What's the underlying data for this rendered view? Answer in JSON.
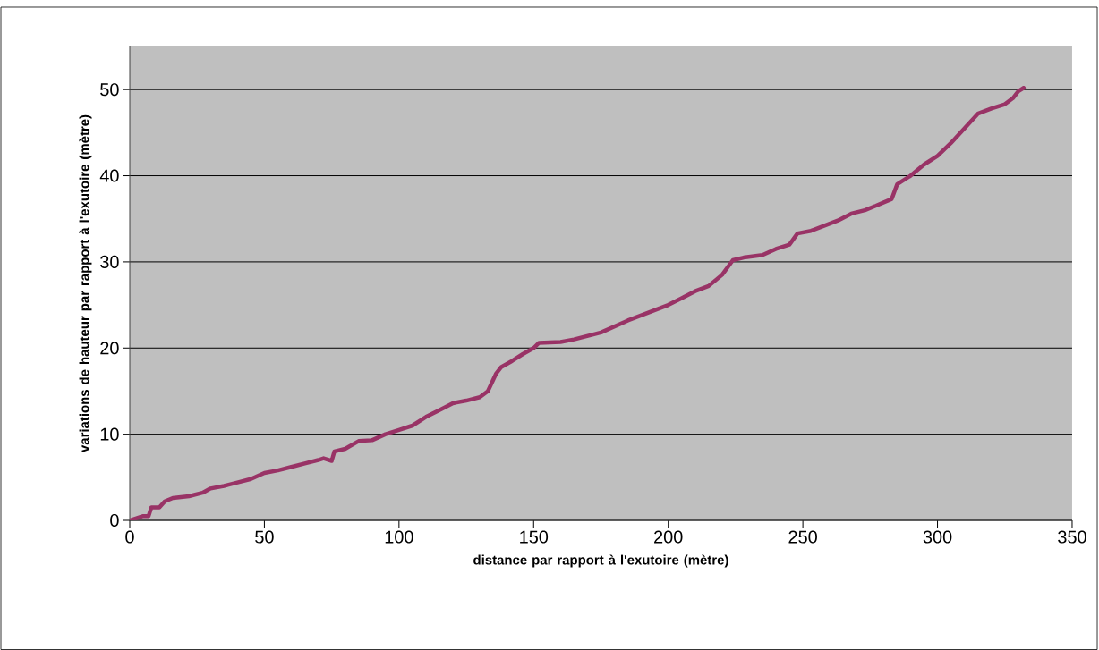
{
  "chart_data": {
    "type": "line",
    "xlabel": "distance par rapport à l'exutoire (mètre)",
    "ylabel": "variations de hauteur par rapport à l'exutoire (mètre)",
    "xlim": [
      0,
      350
    ],
    "xticks": [
      0,
      50,
      100,
      150,
      200,
      250,
      300,
      350
    ],
    "ylim": [
      0,
      55
    ],
    "yticks": [
      0,
      10,
      20,
      30,
      40,
      50
    ],
    "grid": "y",
    "marker": "none",
    "line_style": "solid",
    "series": [
      {
        "color": "#993366",
        "x": [
          0,
          5,
          7,
          8,
          11,
          13,
          16,
          22,
          27,
          30,
          35,
          40,
          45,
          50,
          55,
          60,
          65,
          70,
          72,
          75,
          76,
          80,
          85,
          90,
          95,
          100,
          105,
          110,
          115,
          120,
          125,
          130,
          133,
          136,
          138,
          142,
          146,
          150,
          152,
          160,
          165,
          170,
          175,
          180,
          185,
          190,
          195,
          200,
          205,
          210,
          215,
          220,
          224,
          228,
          235,
          240,
          245,
          248,
          253,
          258,
          263,
          268,
          273,
          277,
          283,
          285,
          290,
          295,
          300,
          305,
          310,
          315,
          320,
          325,
          328,
          330,
          332
        ],
        "values": [
          0,
          0.5,
          0.5,
          1.5,
          1.5,
          2.2,
          2.6,
          2.8,
          3.2,
          3.7,
          4.0,
          4.4,
          4.8,
          5.5,
          5.8,
          6.2,
          6.6,
          7.0,
          7.2,
          6.9,
          8.0,
          8.3,
          9.2,
          9.3,
          10.0,
          10.5,
          11.0,
          12.0,
          12.8,
          13.6,
          13.9,
          14.3,
          15.0,
          17.0,
          17.8,
          18.5,
          19.3,
          20.0,
          20.6,
          20.7,
          21.0,
          21.4,
          21.8,
          22.5,
          23.2,
          23.8,
          24.4,
          25.0,
          25.8,
          26.6,
          27.2,
          28.5,
          30.2,
          30.5,
          30.8,
          31.5,
          32.0,
          33.3,
          33.6,
          34.2,
          34.8,
          35.6,
          36.0,
          36.5,
          37.3,
          39.0,
          40.0,
          41.3,
          42.3,
          43.8,
          45.5,
          47.2,
          47.8,
          48.3,
          49.0,
          49.8,
          50.2
        ]
      }
    ]
  }
}
